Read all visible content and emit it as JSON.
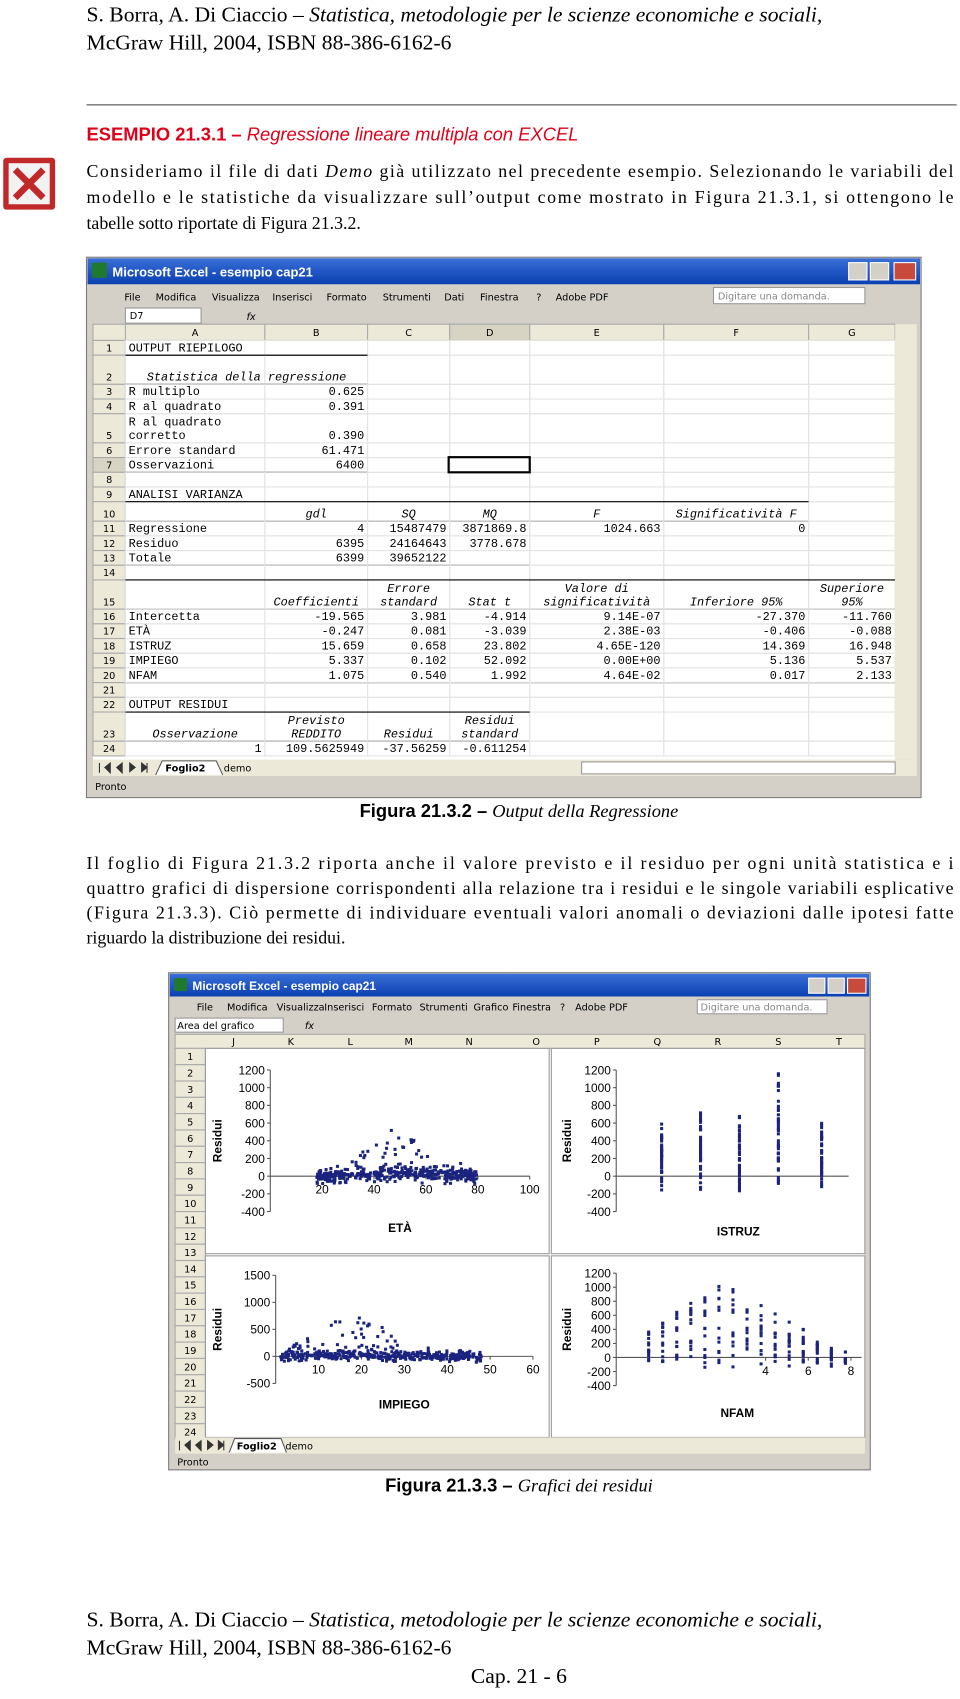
{
  "header": {
    "authors": "S. Borra, A. Di Ciaccio – ",
    "book": "Statistica, metodologie per le scienze economiche e sociali,",
    "publisher": "McGraw Hill, 2004, ISBN 88-386-6162-6"
  },
  "example": {
    "label": "ESEMPIO 21.3.1 – ",
    "title": "Regressione lineare multipla con EXCEL"
  },
  "paragraph1": {
    "lines": [
      [
        "Consideriamo il file di dati ",
        "Demo",
        " già utilizzato nel precedente esempio. Selezionando le variabili del"
      ],
      [
        "modello e le statistiche da visualizzare sull’output come mostrato in Figura 21.3.1, si ottengono le"
      ],
      [
        "tabelle sotto riportate di Figura 21.3.2."
      ]
    ]
  },
  "figure1": {
    "window_title": "Microsoft Excel - esempio cap21",
    "menu": [
      "File",
      "Modifica",
      "Visualizza",
      "Inserisci",
      "Formato",
      "Strumenti",
      "Dati",
      "Finestra",
      "?",
      "Adobe PDF"
    ],
    "help_box": "Digitare una domanda.",
    "name_box": "D7",
    "fx": "fx",
    "columns": [
      "A",
      "B",
      "C",
      "D",
      "E",
      "F",
      "G"
    ],
    "rows": [
      {
        "n": "1",
        "cells": [
          "OUTPUT RIEPILOGO",
          null,
          null,
          null,
          null,
          null,
          null
        ]
      },
      {
        "n": "2",
        "cells": [
          "Statistica della regressione",
          null,
          null,
          null,
          null,
          null,
          null
        ]
      },
      {
        "n": "3",
        "cells": [
          "R multiplo",
          "0.625",
          null,
          null,
          null,
          null,
          null
        ]
      },
      {
        "n": "4",
        "cells": [
          "R al quadrato",
          "0.391",
          null,
          null,
          null,
          null,
          null
        ]
      },
      {
        "n": "5",
        "cells": [
          [
            "R al quadrato",
            "corretto"
          ],
          "0.390",
          null,
          null,
          null,
          null,
          null
        ]
      },
      {
        "n": "6",
        "cells": [
          "Errore standard",
          "61.471",
          null,
          null,
          null,
          null,
          null
        ]
      },
      {
        "n": "7",
        "cells": [
          "Osservazioni",
          "6400",
          null,
          null,
          null,
          null,
          null
        ]
      },
      {
        "n": "8",
        "cells": [
          null,
          null,
          null,
          null,
          null,
          null,
          null
        ]
      },
      {
        "n": "9",
        "cells": [
          "ANALISI VARIANZA",
          null,
          null,
          null,
          null,
          null,
          null
        ]
      },
      {
        "n": "10",
        "cells": [
          null,
          "gdl",
          "SQ",
          "MQ",
          "F",
          "Significatività F",
          null
        ]
      },
      {
        "n": "11",
        "cells": [
          "Regressione",
          "4",
          "15487479",
          "3871869.8",
          "1024.663",
          "0",
          null
        ]
      },
      {
        "n": "12",
        "cells": [
          "Residuo",
          "6395",
          "24164643",
          "3778.678",
          null,
          null,
          null
        ]
      },
      {
        "n": "13",
        "cells": [
          "Totale",
          "6399",
          "39652122",
          null,
          null,
          null,
          null
        ]
      },
      {
        "n": "14",
        "cells": [
          null,
          null,
          null,
          null,
          null,
          null,
          null
        ]
      },
      {
        "n": "15",
        "cells": [
          null,
          "Coefficienti",
          [
            "Errore",
            "standard"
          ],
          "Stat t",
          [
            "Valore di",
            "significatività"
          ],
          "Inferiore 95%",
          [
            "Superiore",
            "95%"
          ]
        ]
      },
      {
        "n": "16",
        "cells": [
          "Intercetta",
          "-19.565",
          "3.981",
          "-4.914",
          "9.14E-07",
          "-27.370",
          "-11.760"
        ]
      },
      {
        "n": "17",
        "cells": [
          "ETÀ",
          "-0.247",
          "0.081",
          "-3.039",
          "2.38E-03",
          "-0.406",
          "-0.088"
        ]
      },
      {
        "n": "18",
        "cells": [
          "ISTRUZ",
          "15.659",
          "0.658",
          "23.802",
          "4.65E-120",
          "14.369",
          "16.948"
        ]
      },
      {
        "n": "19",
        "cells": [
          "IMPIEGO",
          "5.337",
          "0.102",
          "52.092",
          "0.00E+00",
          "5.136",
          "5.537"
        ]
      },
      {
        "n": "20",
        "cells": [
          "NFAM",
          "1.075",
          "0.540",
          "1.992",
          "4.64E-02",
          "0.017",
          "2.133"
        ]
      },
      {
        "n": "21",
        "cells": [
          null,
          null,
          null,
          null,
          null,
          null,
          null
        ]
      },
      {
        "n": "22",
        "cells": [
          "OUTPUT RESIDUI",
          null,
          null,
          null,
          null,
          null,
          null
        ]
      },
      {
        "n": "23",
        "cells": [
          "Osservazione",
          [
            "Previsto",
            "REDDITO"
          ],
          "Residui",
          [
            "Residui",
            "standard"
          ],
          null,
          null,
          null
        ]
      },
      {
        "n": "24",
        "cells": [
          "1",
          "109.5625949",
          "-37.56259",
          "-0.611254",
          null,
          null,
          null
        ]
      }
    ],
    "sheet_tabs": [
      "Foglio2",
      "demo"
    ],
    "status": "Pronto",
    "caption": {
      "label": "Figura 21.3.2 – ",
      "text": "Output della Regressione"
    }
  },
  "paragraph2": {
    "lines": [
      "Il foglio di Figura 21.3.2 riporta anche il valore previsto e il residuo per ogni unità statistica e i",
      "quattro grafici di dispersione corrispondenti alla relazione tra i residui e le singole variabili esplicative",
      "(Figura 21.3.3). Ciò permette di individuare eventuali valori anomali o deviazioni dalle ipotesi fatte",
      "riguardo la distribuzione dei residui."
    ]
  },
  "figure2": {
    "window_title": "Microsoft Excel - esempio cap21",
    "menu": [
      "File",
      "Modifica",
      "Visualizza",
      "Inserisci",
      "Formato",
      "Strumenti",
      "Grafico",
      "Finestra",
      "?",
      "Adobe PDF"
    ],
    "help_box": "Digitare una domanda.",
    "name_box": "Area del grafico",
    "fx": "fx",
    "columns": [
      "J",
      "K",
      "L",
      "M",
      "N",
      "O",
      "P",
      "Q",
      "R",
      "S",
      "T"
    ],
    "rows": [
      "1",
      "2",
      "3",
      "4",
      "5",
      "6",
      "7",
      "8",
      "9",
      "10",
      "11",
      "12",
      "13",
      "14",
      "15",
      "16",
      "17",
      "18",
      "19",
      "20",
      "21",
      "22",
      "23",
      "24"
    ],
    "charts": [
      {
        "type": "scatter",
        "y_label": "Residui",
        "x_label": "ETÀ",
        "ylim": [
          -400,
          1200
        ],
        "yticks": [
          -400,
          -200,
          0,
          200,
          400,
          600,
          800,
          1000,
          1200
        ],
        "xlim": [
          0,
          100
        ],
        "xticks": [
          20,
          40,
          60,
          80,
          100
        ]
      },
      {
        "type": "scatter",
        "y_label": "Residui",
        "x_label": "ISTRUZ",
        "ylim": [
          -400,
          1200
        ],
        "yticks": [
          -400,
          -200,
          0,
          200,
          400,
          600,
          800,
          1000,
          1200
        ]
      },
      {
        "type": "scatter",
        "y_label": "Residui",
        "x_label": "IMPIEGO",
        "ylim": [
          -500,
          1500
        ],
        "yticks": [
          -500,
          0,
          500,
          1000,
          1500
        ],
        "xlim": [
          0,
          60
        ],
        "xticks": [
          10,
          20,
          30,
          40,
          50,
          60
        ]
      },
      {
        "type": "scatter",
        "y_label": "Residui",
        "x_label": "NFAM",
        "ylim": [
          -400,
          1200
        ],
        "yticks": [
          -400,
          -200,
          0,
          200,
          400,
          600,
          800,
          1000,
          1200
        ],
        "xlim": [
          -3,
          8.5
        ],
        "xticks": [
          4,
          6,
          8
        ]
      }
    ],
    "sheet_tabs": [
      "Foglio2",
      "demo"
    ],
    "status": "Pronto",
    "caption": {
      "label": "Figura 21.3.3 – ",
      "text": "Grafici dei residui"
    }
  },
  "footer": {
    "page": "Cap. 21 - 6"
  }
}
